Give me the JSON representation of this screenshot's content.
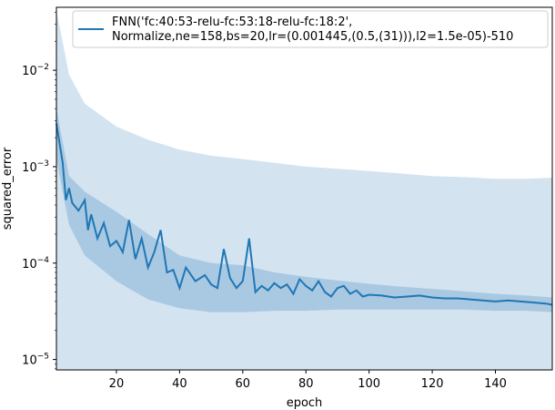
{
  "chart_data": {
    "type": "line",
    "xlabel": "epoch",
    "ylabel": "squared_error",
    "yscale": "log",
    "xlim": [
      1,
      158
    ],
    "ylim": [
      7.8e-06,
      0.045
    ],
    "grid": false,
    "legend_position": "top-right",
    "x_ticks": [
      20,
      40,
      60,
      80,
      100,
      120,
      140
    ],
    "y_ticks": [
      {
        "value": 1e-05,
        "base": "10",
        "exp": "−5"
      },
      {
        "value": 0.0001,
        "base": "10",
        "exp": "−4"
      },
      {
        "value": 0.001,
        "base": "10",
        "exp": "−3"
      },
      {
        "value": 0.01,
        "base": "10",
        "exp": "−2"
      }
    ],
    "series": [
      {
        "name": "FNN('fc:40:53-relu-fc:53:18-relu-fc:18:2',\nNormalize,ne=158,bs=20,lr=(0.001445,(0.5,(31))),l2=1.5e-05)-510",
        "color": "#1f77b4",
        "x": [
          1,
          3,
          4,
          5,
          6,
          8,
          10,
          11,
          12,
          14,
          16,
          18,
          20,
          22,
          24,
          26,
          28,
          30,
          32,
          34,
          36,
          38,
          40,
          42,
          45,
          48,
          50,
          52,
          54,
          56,
          58,
          60,
          62,
          64,
          66,
          68,
          70,
          72,
          74,
          76,
          78,
          80,
          82,
          84,
          86,
          88,
          90,
          92,
          94,
          96,
          98,
          100,
          104,
          108,
          112,
          116,
          120,
          124,
          128,
          132,
          136,
          140,
          144,
          148,
          152,
          156,
          158
        ],
        "y": [
          0.0028,
          0.0011,
          0.00045,
          0.0006,
          0.00042,
          0.00035,
          0.00045,
          0.00022,
          0.00032,
          0.00018,
          0.00026,
          0.00015,
          0.00017,
          0.00013,
          0.00028,
          0.00011,
          0.00018,
          9e-05,
          0.00013,
          0.00022,
          8e-05,
          8.5e-05,
          5.5e-05,
          9e-05,
          6.5e-05,
          7.5e-05,
          6e-05,
          5.5e-05,
          0.00014,
          7e-05,
          5.5e-05,
          6.5e-05,
          0.00018,
          5e-05,
          5.8e-05,
          5.2e-05,
          6.2e-05,
          5.5e-05,
          6e-05,
          4.8e-05,
          6.8e-05,
          5.8e-05,
          5.2e-05,
          6.5e-05,
          5e-05,
          4.5e-05,
          5.5e-05,
          5.8e-05,
          4.8e-05,
          5.2e-05,
          4.5e-05,
          4.7e-05,
          4.6e-05,
          4.4e-05,
          4.5e-05,
          4.6e-05,
          4.4e-05,
          4.3e-05,
          4.3e-05,
          4.2e-05,
          4.1e-05,
          4e-05,
          4.1e-05,
          4e-05,
          3.9e-05,
          3.8e-05,
          3.7e-05
        ]
      }
    ],
    "inner_band": {
      "x": [
        1,
        5,
        10,
        20,
        30,
        40,
        50,
        60,
        70,
        80,
        90,
        100,
        110,
        120,
        130,
        140,
        150,
        158
      ],
      "upper": [
        0.004,
        0.0008,
        0.00055,
        0.00034,
        0.0002,
        0.00012,
        0.0001,
        9.5e-05,
        8e-05,
        7.2e-05,
        6.6e-05,
        6.1e-05,
        5.7e-05,
        5.4e-05,
        5.1e-05,
        4.8e-05,
        4.6e-05,
        4.4e-05
      ],
      "lower": [
        0.0012,
        0.00025,
        0.00012,
        6.5e-05,
        4.2e-05,
        3.4e-05,
        3.1e-05,
        3.1e-05,
        3.2e-05,
        3.2e-05,
        3.3e-05,
        3.3e-05,
        3.3e-05,
        3.3e-05,
        3.3e-05,
        3.2e-05,
        3.2e-05,
        3.1e-05
      ]
    },
    "outer_band": {
      "x": [
        1,
        5,
        10,
        20,
        30,
        40,
        50,
        60,
        70,
        80,
        90,
        100,
        110,
        120,
        130,
        140,
        150,
        158
      ],
      "upper": [
        0.042,
        0.009,
        0.0045,
        0.0026,
        0.0019,
        0.0015,
        0.0013,
        0.0012,
        0.0011,
        0.001,
        0.00095,
        0.0009,
        0.00085,
        0.0008,
        0.00078,
        0.00075,
        0.00075,
        0.00077
      ],
      "lower": [
        7.8e-06,
        7.8e-06,
        7.8e-06,
        7.8e-06,
        7.8e-06,
        7.8e-06,
        7.8e-06,
        7.8e-06,
        7.8e-06,
        7.8e-06,
        7.8e-06,
        7.8e-06,
        7.8e-06,
        7.8e-06,
        7.8e-06,
        7.8e-06,
        7.8e-06,
        7.8e-06
      ]
    },
    "colors": {
      "line": "#1f77b4",
      "outer_fill": "#d3e3f0",
      "inner_fill": "#a9c8e2",
      "axes": "#000000"
    }
  }
}
